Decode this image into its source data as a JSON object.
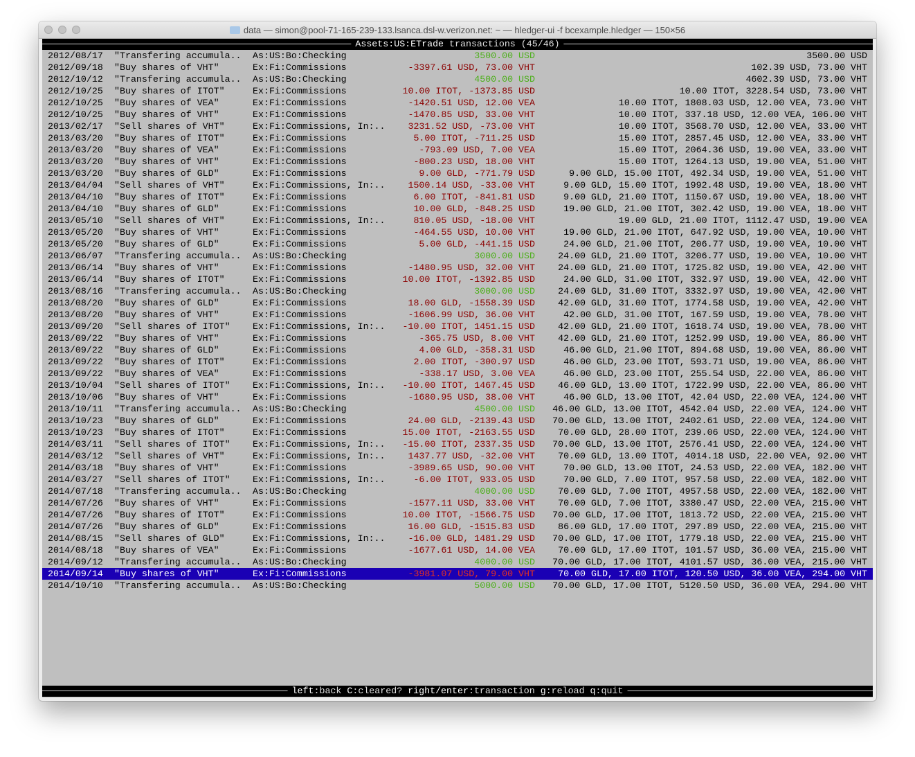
{
  "window": {
    "title": "data — simon@pool-71-165-239-133.lsanca.dsl-w.verizon.net: ~ — hledger-ui -f bcexample.hledger — 150×56"
  },
  "header": {
    "account": "Assets:US:ETrade",
    "label": "transactions",
    "count": "(45/46)"
  },
  "colors": {
    "positive": "#4caf1a",
    "negative": "#8b0000",
    "selection": "#1a00b4",
    "background": "#bfbfbf"
  },
  "selected_index": 44,
  "rows": [
    {
      "date": "2012/08/17",
      "desc": "\"Transfering accumula..",
      "acct": "As:US:Bo:Checking",
      "amt": "3500.00 USD",
      "pos": true,
      "bal": "3500.00 USD"
    },
    {
      "date": "2012/09/18",
      "desc": "\"Buy shares of VHT\"",
      "acct": "Ex:Fi:Commissions",
      "amt": "-3397.61 USD, 73.00 VHT",
      "bal": "102.39 USD, 73.00 VHT"
    },
    {
      "date": "2012/10/12",
      "desc": "\"Transfering accumula..",
      "acct": "As:US:Bo:Checking",
      "amt": "4500.00 USD",
      "pos": true,
      "bal": "4602.39 USD, 73.00 VHT"
    },
    {
      "date": "2012/10/25",
      "desc": "\"Buy shares of ITOT\"",
      "acct": "Ex:Fi:Commissions",
      "amt": "10.00 ITOT, -1373.85 USD",
      "bal": "10.00 ITOT, 3228.54 USD, 73.00 VHT"
    },
    {
      "date": "2012/10/25",
      "desc": "\"Buy shares of VEA\"",
      "acct": "Ex:Fi:Commissions",
      "amt": "-1420.51 USD, 12.00 VEA",
      "bal": "10.00 ITOT, 1808.03 USD, 12.00 VEA, 73.00 VHT"
    },
    {
      "date": "2012/10/25",
      "desc": "\"Buy shares of VHT\"",
      "acct": "Ex:Fi:Commissions",
      "amt": "-1470.85 USD, 33.00 VHT",
      "bal": "10.00 ITOT, 337.18 USD, 12.00 VEA, 106.00 VHT"
    },
    {
      "date": "2013/02/17",
      "desc": "\"Sell shares of VHT\"",
      "acct": "Ex:Fi:Commissions, In:..",
      "amt": "3231.52 USD, -73.00 VHT",
      "bal": "10.00 ITOT, 3568.70 USD, 12.00 VEA, 33.00 VHT"
    },
    {
      "date": "2013/03/20",
      "desc": "\"Buy shares of ITOT\"",
      "acct": "Ex:Fi:Commissions",
      "amt": "5.00 ITOT, -711.25 USD",
      "bal": "15.00 ITOT, 2857.45 USD, 12.00 VEA, 33.00 VHT"
    },
    {
      "date": "2013/03/20",
      "desc": "\"Buy shares of VEA\"",
      "acct": "Ex:Fi:Commissions",
      "amt": "-793.09 USD, 7.00 VEA",
      "bal": "15.00 ITOT, 2064.36 USD, 19.00 VEA, 33.00 VHT"
    },
    {
      "date": "2013/03/20",
      "desc": "\"Buy shares of VHT\"",
      "acct": "Ex:Fi:Commissions",
      "amt": "-800.23 USD, 18.00 VHT",
      "bal": "15.00 ITOT, 1264.13 USD, 19.00 VEA, 51.00 VHT"
    },
    {
      "date": "2013/03/20",
      "desc": "\"Buy shares of GLD\"",
      "acct": "Ex:Fi:Commissions",
      "amt": "9.00 GLD, -771.79 USD",
      "bal": "9.00 GLD, 15.00 ITOT, 492.34 USD, 19.00 VEA, 51.00 VHT"
    },
    {
      "date": "2013/04/04",
      "desc": "\"Sell shares of VHT\"",
      "acct": "Ex:Fi:Commissions, In:..",
      "amt": "1500.14 USD, -33.00 VHT",
      "bal": "9.00 GLD, 15.00 ITOT, 1992.48 USD, 19.00 VEA, 18.00 VHT"
    },
    {
      "date": "2013/04/10",
      "desc": "\"Buy shares of ITOT\"",
      "acct": "Ex:Fi:Commissions",
      "amt": "6.00 ITOT, -841.81 USD",
      "bal": "9.00 GLD, 21.00 ITOT, 1150.67 USD, 19.00 VEA, 18.00 VHT"
    },
    {
      "date": "2013/04/10",
      "desc": "\"Buy shares of GLD\"",
      "acct": "Ex:Fi:Commissions",
      "amt": "10.00 GLD, -848.25 USD",
      "bal": "19.00 GLD, 21.00 ITOT, 302.42 USD, 19.00 VEA, 18.00 VHT"
    },
    {
      "date": "2013/05/10",
      "desc": "\"Sell shares of VHT\"",
      "acct": "Ex:Fi:Commissions, In:..",
      "amt": "810.05 USD, -18.00 VHT",
      "bal": "19.00 GLD, 21.00 ITOT, 1112.47 USD, 19.00 VEA"
    },
    {
      "date": "2013/05/20",
      "desc": "\"Buy shares of VHT\"",
      "acct": "Ex:Fi:Commissions",
      "amt": "-464.55 USD, 10.00 VHT",
      "bal": "19.00 GLD, 21.00 ITOT, 647.92 USD, 19.00 VEA, 10.00 VHT"
    },
    {
      "date": "2013/05/20",
      "desc": "\"Buy shares of GLD\"",
      "acct": "Ex:Fi:Commissions",
      "amt": "5.00 GLD, -441.15 USD",
      "bal": "24.00 GLD, 21.00 ITOT, 206.77 USD, 19.00 VEA, 10.00 VHT"
    },
    {
      "date": "2013/06/07",
      "desc": "\"Transfering accumula..",
      "acct": "As:US:Bo:Checking",
      "amt": "3000.00 USD",
      "pos": true,
      "bal": "24.00 GLD, 21.00 ITOT, 3206.77 USD, 19.00 VEA, 10.00 VHT"
    },
    {
      "date": "2013/06/14",
      "desc": "\"Buy shares of VHT\"",
      "acct": "Ex:Fi:Commissions",
      "amt": "-1480.95 USD, 32.00 VHT",
      "bal": "24.00 GLD, 21.00 ITOT, 1725.82 USD, 19.00 VEA, 42.00 VHT"
    },
    {
      "date": "2013/06/14",
      "desc": "\"Buy shares of ITOT\"",
      "acct": "Ex:Fi:Commissions",
      "amt": "10.00 ITOT, -1392.85 USD",
      "bal": "24.00 GLD, 31.00 ITOT, 332.97 USD, 19.00 VEA, 42.00 VHT"
    },
    {
      "date": "2013/08/16",
      "desc": "\"Transfering accumula..",
      "acct": "As:US:Bo:Checking",
      "amt": "3000.00 USD",
      "pos": true,
      "bal": "24.00 GLD, 31.00 ITOT, 3332.97 USD, 19.00 VEA, 42.00 VHT"
    },
    {
      "date": "2013/08/20",
      "desc": "\"Buy shares of GLD\"",
      "acct": "Ex:Fi:Commissions",
      "amt": "18.00 GLD, -1558.39 USD",
      "bal": "42.00 GLD, 31.00 ITOT, 1774.58 USD, 19.00 VEA, 42.00 VHT"
    },
    {
      "date": "2013/08/20",
      "desc": "\"Buy shares of VHT\"",
      "acct": "Ex:Fi:Commissions",
      "amt": "-1606.99 USD, 36.00 VHT",
      "bal": "42.00 GLD, 31.00 ITOT, 167.59 USD, 19.00 VEA, 78.00 VHT"
    },
    {
      "date": "2013/09/20",
      "desc": "\"Sell shares of ITOT\"",
      "acct": "Ex:Fi:Commissions, In:..",
      "amt": "-10.00 ITOT, 1451.15 USD",
      "bal": "42.00 GLD, 21.00 ITOT, 1618.74 USD, 19.00 VEA, 78.00 VHT"
    },
    {
      "date": "2013/09/22",
      "desc": "\"Buy shares of VHT\"",
      "acct": "Ex:Fi:Commissions",
      "amt": "-365.75 USD, 8.00 VHT",
      "bal": "42.00 GLD, 21.00 ITOT, 1252.99 USD, 19.00 VEA, 86.00 VHT"
    },
    {
      "date": "2013/09/22",
      "desc": "\"Buy shares of GLD\"",
      "acct": "Ex:Fi:Commissions",
      "amt": "4.00 GLD, -358.31 USD",
      "bal": "46.00 GLD, 21.00 ITOT, 894.68 USD, 19.00 VEA, 86.00 VHT"
    },
    {
      "date": "2013/09/22",
      "desc": "\"Buy shares of ITOT\"",
      "acct": "Ex:Fi:Commissions",
      "amt": "2.00 ITOT, -300.97 USD",
      "bal": "46.00 GLD, 23.00 ITOT, 593.71 USD, 19.00 VEA, 86.00 VHT"
    },
    {
      "date": "2013/09/22",
      "desc": "\"Buy shares of VEA\"",
      "acct": "Ex:Fi:Commissions",
      "amt": "-338.17 USD, 3.00 VEA",
      "bal": "46.00 GLD, 23.00 ITOT, 255.54 USD, 22.00 VEA, 86.00 VHT"
    },
    {
      "date": "2013/10/04",
      "desc": "\"Sell shares of ITOT\"",
      "acct": "Ex:Fi:Commissions, In:..",
      "amt": "-10.00 ITOT, 1467.45 USD",
      "bal": "46.00 GLD, 13.00 ITOT, 1722.99 USD, 22.00 VEA, 86.00 VHT"
    },
    {
      "date": "2013/10/06",
      "desc": "\"Buy shares of VHT\"",
      "acct": "Ex:Fi:Commissions",
      "amt": "-1680.95 USD, 38.00 VHT",
      "bal": "46.00 GLD, 13.00 ITOT, 42.04 USD, 22.00 VEA, 124.00 VHT"
    },
    {
      "date": "2013/10/11",
      "desc": "\"Transfering accumula..",
      "acct": "As:US:Bo:Checking",
      "amt": "4500.00 USD",
      "pos": true,
      "bal": "46.00 GLD, 13.00 ITOT, 4542.04 USD, 22.00 VEA, 124.00 VHT"
    },
    {
      "date": "2013/10/23",
      "desc": "\"Buy shares of GLD\"",
      "acct": "Ex:Fi:Commissions",
      "amt": "24.00 GLD, -2139.43 USD",
      "bal": "70.00 GLD, 13.00 ITOT, 2402.61 USD, 22.00 VEA, 124.00 VHT"
    },
    {
      "date": "2013/10/23",
      "desc": "\"Buy shares of ITOT\"",
      "acct": "Ex:Fi:Commissions",
      "amt": "15.00 ITOT, -2163.55 USD",
      "bal": "70.00 GLD, 28.00 ITOT, 239.06 USD, 22.00 VEA, 124.00 VHT"
    },
    {
      "date": "2014/03/11",
      "desc": "\"Sell shares of ITOT\"",
      "acct": "Ex:Fi:Commissions, In:..",
      "amt": "-15.00 ITOT, 2337.35 USD",
      "bal": "70.00 GLD, 13.00 ITOT, 2576.41 USD, 22.00 VEA, 124.00 VHT"
    },
    {
      "date": "2014/03/12",
      "desc": "\"Sell shares of VHT\"",
      "acct": "Ex:Fi:Commissions, In:..",
      "amt": "1437.77 USD, -32.00 VHT",
      "bal": "70.00 GLD, 13.00 ITOT, 4014.18 USD, 22.00 VEA, 92.00 VHT"
    },
    {
      "date": "2014/03/18",
      "desc": "\"Buy shares of VHT\"",
      "acct": "Ex:Fi:Commissions",
      "amt": "-3989.65 USD, 90.00 VHT",
      "bal": "70.00 GLD, 13.00 ITOT, 24.53 USD, 22.00 VEA, 182.00 VHT"
    },
    {
      "date": "2014/03/27",
      "desc": "\"Sell shares of ITOT\"",
      "acct": "Ex:Fi:Commissions, In:..",
      "amt": "-6.00 ITOT, 933.05 USD",
      "bal": "70.00 GLD, 7.00 ITOT, 957.58 USD, 22.00 VEA, 182.00 VHT"
    },
    {
      "date": "2014/07/18",
      "desc": "\"Transfering accumula..",
      "acct": "As:US:Bo:Checking",
      "amt": "4000.00 USD",
      "pos": true,
      "bal": "70.00 GLD, 7.00 ITOT, 4957.58 USD, 22.00 VEA, 182.00 VHT"
    },
    {
      "date": "2014/07/26",
      "desc": "\"Buy shares of VHT\"",
      "acct": "Ex:Fi:Commissions",
      "amt": "-1577.11 USD, 33.00 VHT",
      "bal": "70.00 GLD, 7.00 ITOT, 3380.47 USD, 22.00 VEA, 215.00 VHT"
    },
    {
      "date": "2014/07/26",
      "desc": "\"Buy shares of ITOT\"",
      "acct": "Ex:Fi:Commissions",
      "amt": "10.00 ITOT, -1566.75 USD",
      "bal": "70.00 GLD, 17.00 ITOT, 1813.72 USD, 22.00 VEA, 215.00 VHT"
    },
    {
      "date": "2014/07/26",
      "desc": "\"Buy shares of GLD\"",
      "acct": "Ex:Fi:Commissions",
      "amt": "16.00 GLD, -1515.83 USD",
      "bal": "86.00 GLD, 17.00 ITOT, 297.89 USD, 22.00 VEA, 215.00 VHT"
    },
    {
      "date": "2014/08/15",
      "desc": "\"Sell shares of GLD\"",
      "acct": "Ex:Fi:Commissions, In:..",
      "amt": "-16.00 GLD, 1481.29 USD",
      "bal": "70.00 GLD, 17.00 ITOT, 1779.18 USD, 22.00 VEA, 215.00 VHT"
    },
    {
      "date": "2014/08/18",
      "desc": "\"Buy shares of VEA\"",
      "acct": "Ex:Fi:Commissions",
      "amt": "-1677.61 USD, 14.00 VEA",
      "bal": "70.00 GLD, 17.00 ITOT, 101.57 USD, 36.00 VEA, 215.00 VHT"
    },
    {
      "date": "2014/09/12",
      "desc": "\"Transfering accumula..",
      "acct": "As:US:Bo:Checking",
      "amt": "4000.00 USD",
      "pos": true,
      "bal": "70.00 GLD, 17.00 ITOT, 4101.57 USD, 36.00 VEA, 215.00 VHT"
    },
    {
      "date": "2014/09/14",
      "desc": "\"Buy shares of VHT\"",
      "acct": "Ex:Fi:Commissions",
      "amt": "-3981.07 USD, 79.00 VHT",
      "bal": "70.00 GLD, 17.00 ITOT, 120.50 USD, 36.00 VEA, 294.00 VHT"
    },
    {
      "date": "2014/10/10",
      "desc": "\"Transfering accumula..",
      "acct": "As:US:Bo:Checking",
      "amt": "5000.00 USD",
      "pos": true,
      "bal": "70.00 GLD, 17.00 ITOT, 5120.50 USD, 36.00 VEA, 294.00 VHT"
    }
  ],
  "footer": {
    "keys": [
      {
        "key": "left",
        "action": "back"
      },
      {
        "key": "C",
        "action": "cleared?"
      },
      {
        "key": "right/enter",
        "action": "transaction"
      },
      {
        "key": "g",
        "action": "reload"
      },
      {
        "key": "q",
        "action": "quit"
      }
    ]
  }
}
